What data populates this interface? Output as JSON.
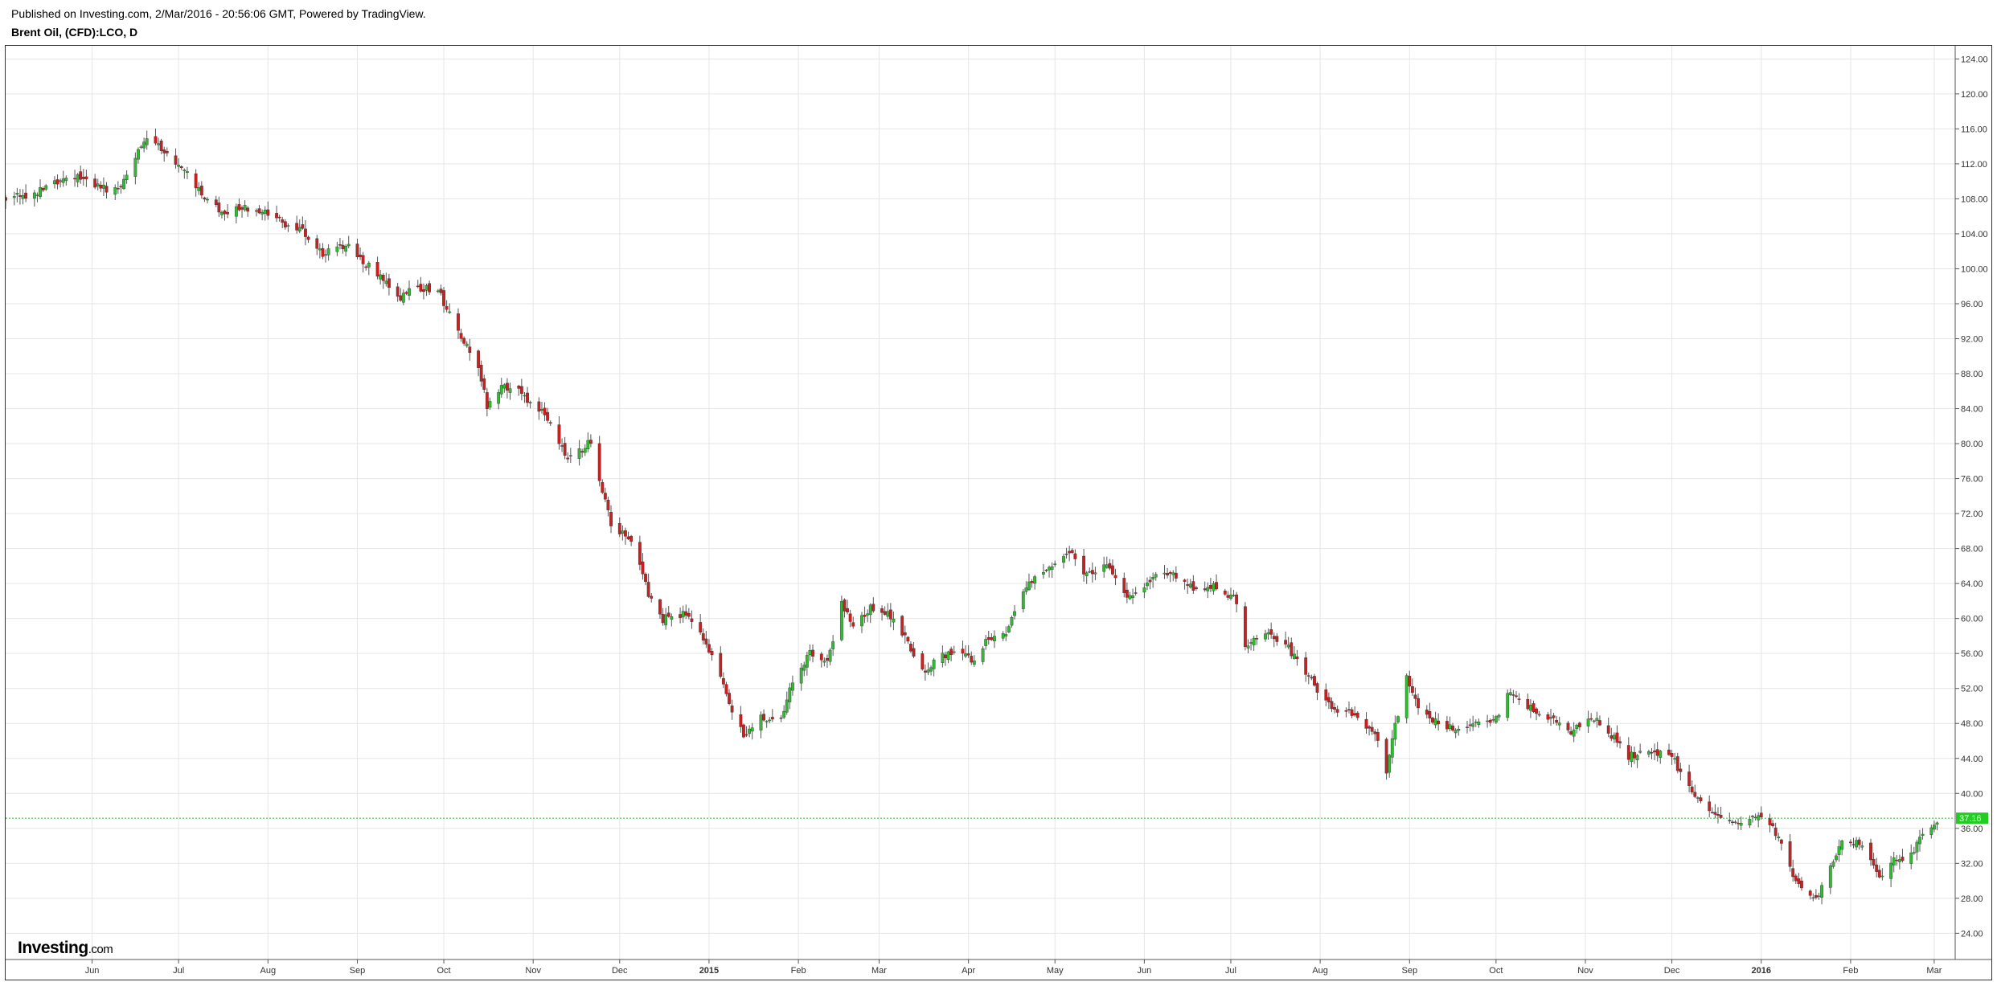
{
  "header": {
    "publish_line": "Published on Investing.com, 2/Mar/2016 - 20:56:06 GMT, Powered by TradingView.",
    "symbol_title": "Brent Oil, (CFD):LCO, D"
  },
  "logo": {
    "name": "Investing",
    "suffix": ".com"
  },
  "colors": {
    "up": "#2ebd2e",
    "down": "#cc1f1f",
    "wick": "#555555",
    "grid": "#e6e6e6",
    "last_price_line": "#2ebd2e",
    "last_price_tag": "#22cc22"
  },
  "chart_data": {
    "type": "candlestick",
    "title": "Brent Oil, (CFD):LCO, D",
    "interval": "D",
    "x_range": [
      "2014-05-02",
      "2016-03-08"
    ],
    "ylim": [
      21.0,
      125.5
    ],
    "y_ticks": [
      "24.00",
      "28.00",
      "32.00",
      "36.00",
      "40.00",
      "44.00",
      "48.00",
      "52.00",
      "56.00",
      "60.00",
      "64.00",
      "68.00",
      "72.00",
      "76.00",
      "80.00",
      "84.00",
      "88.00",
      "92.00",
      "96.00",
      "100.00",
      "104.00",
      "108.00",
      "112.00",
      "116.00",
      "120.00",
      "124.00"
    ],
    "x_ticks": [
      {
        "date": "2014-06-01",
        "label": "Jun"
      },
      {
        "date": "2014-07-01",
        "label": "Jul"
      },
      {
        "date": "2014-08-01",
        "label": "Aug"
      },
      {
        "date": "2014-09-01",
        "label": "Sep"
      },
      {
        "date": "2014-10-01",
        "label": "Oct"
      },
      {
        "date": "2014-11-01",
        "label": "Nov"
      },
      {
        "date": "2014-12-01",
        "label": "Dec"
      },
      {
        "date": "2015-01-01",
        "label": "2015"
      },
      {
        "date": "2015-02-01",
        "label": "Feb"
      },
      {
        "date": "2015-03-01",
        "label": "Mar"
      },
      {
        "date": "2015-04-01",
        "label": "Apr"
      },
      {
        "date": "2015-05-01",
        "label": "May"
      },
      {
        "date": "2015-06-01",
        "label": "Jun"
      },
      {
        "date": "2015-07-01",
        "label": "Jul"
      },
      {
        "date": "2015-08-01",
        "label": "Aug"
      },
      {
        "date": "2015-09-01",
        "label": "Sep"
      },
      {
        "date": "2015-10-01",
        "label": "Oct"
      },
      {
        "date": "2015-11-01",
        "label": "Nov"
      },
      {
        "date": "2015-12-01",
        "label": "Dec"
      },
      {
        "date": "2016-01-01",
        "label": "2016"
      },
      {
        "date": "2016-02-01",
        "label": "Feb"
      },
      {
        "date": "2016-03-01",
        "label": "Mar"
      }
    ],
    "close_path": [
      [
        "2014-05-02",
        108.2
      ],
      [
        "2014-05-12",
        108.6
      ],
      [
        "2014-05-20",
        109.9
      ],
      [
        "2014-05-27",
        110.4
      ],
      [
        "2014-06-05",
        109.3
      ],
      [
        "2014-06-10",
        108.8
      ],
      [
        "2014-06-17",
        113.8
      ],
      [
        "2014-06-20",
        115.0
      ],
      [
        "2014-06-27",
        113.1
      ],
      [
        "2014-07-03",
        111.1
      ],
      [
        "2014-07-10",
        108.2
      ],
      [
        "2014-07-15",
        106.6
      ],
      [
        "2014-07-17",
        106.4
      ],
      [
        "2014-07-24",
        107.1
      ],
      [
        "2014-07-30",
        106.5
      ],
      [
        "2014-08-06",
        105.2
      ],
      [
        "2014-08-13",
        104.2
      ],
      [
        "2014-08-20",
        101.8
      ],
      [
        "2014-08-29",
        102.8
      ],
      [
        "2014-09-03",
        100.9
      ],
      [
        "2014-09-10",
        98.8
      ],
      [
        "2014-09-15",
        96.5
      ],
      [
        "2014-09-22",
        97.9
      ],
      [
        "2014-09-29",
        97.6
      ],
      [
        "2014-10-06",
        92.5
      ],
      [
        "2014-10-13",
        88.9
      ],
      [
        "2014-10-16",
        84.4
      ],
      [
        "2014-10-20",
        86.2
      ],
      [
        "2014-10-27",
        86.6
      ],
      [
        "2014-10-31",
        84.5
      ],
      [
        "2014-11-06",
        83.0
      ],
      [
        "2014-11-13",
        77.9
      ],
      [
        "2014-11-21",
        80.3
      ],
      [
        "2014-11-28",
        70.6
      ],
      [
        "2014-12-05",
        69.0
      ],
      [
        "2014-12-12",
        61.9
      ],
      [
        "2014-12-16",
        59.9
      ],
      [
        "2014-12-24",
        60.7
      ],
      [
        "2014-12-31",
        57.3
      ],
      [
        "2015-01-07",
        51.2
      ],
      [
        "2015-01-13",
        46.5
      ],
      [
        "2015-01-19",
        48.9
      ],
      [
        "2015-01-26",
        48.2
      ],
      [
        "2015-01-30",
        52.9
      ],
      [
        "2015-02-05",
        56.2
      ],
      [
        "2015-02-11",
        54.8
      ],
      [
        "2015-02-16",
        61.7
      ],
      [
        "2015-02-20",
        59.5
      ],
      [
        "2015-02-26",
        61.2
      ],
      [
        "2015-03-05",
        60.3
      ],
      [
        "2015-03-10",
        58.0
      ],
      [
        "2015-03-16",
        53.9
      ],
      [
        "2015-03-20",
        55.1
      ],
      [
        "2015-03-27",
        56.5
      ],
      [
        "2015-04-03",
        54.9
      ],
      [
        "2015-04-08",
        57.9
      ],
      [
        "2015-04-14",
        58.1
      ],
      [
        "2015-04-20",
        63.5
      ],
      [
        "2015-04-24",
        64.6
      ],
      [
        "2015-04-30",
        66.3
      ],
      [
        "2015-05-06",
        67.7
      ],
      [
        "2015-05-12",
        64.9
      ],
      [
        "2015-05-19",
        65.9
      ],
      [
        "2015-05-27",
        62.4
      ],
      [
        "2015-06-03",
        64.5
      ],
      [
        "2015-06-10",
        65.5
      ],
      [
        "2015-06-17",
        63.5
      ],
      [
        "2015-06-26",
        63.6
      ],
      [
        "2015-07-03",
        62.1
      ],
      [
        "2015-07-06",
        56.9
      ],
      [
        "2015-07-13",
        58.2
      ],
      [
        "2015-07-20",
        57.1
      ],
      [
        "2015-07-28",
        53.3
      ],
      [
        "2015-08-05",
        49.6
      ],
      [
        "2015-08-12",
        49.2
      ],
      [
        "2015-08-20",
        46.6
      ],
      [
        "2015-08-24",
        42.6
      ],
      [
        "2015-08-27",
        47.6
      ],
      [
        "2015-08-31",
        53.7
      ],
      [
        "2015-09-04",
        49.6
      ],
      [
        "2015-09-11",
        48.1
      ],
      [
        "2015-09-17",
        47.4
      ],
      [
        "2015-09-24",
        48.2
      ],
      [
        "2015-10-01",
        48.7
      ],
      [
        "2015-10-06",
        51.9
      ],
      [
        "2015-10-12",
        49.9
      ],
      [
        "2015-10-19",
        48.7
      ],
      [
        "2015-10-27",
        47.2
      ],
      [
        "2015-11-04",
        48.5
      ],
      [
        "2015-11-09",
        47.1
      ],
      [
        "2015-11-16",
        44.3
      ],
      [
        "2015-11-23",
        44.5
      ],
      [
        "2015-11-30",
        44.8
      ],
      [
        "2015-12-07",
        40.7
      ],
      [
        "2015-12-14",
        38.4
      ],
      [
        "2015-12-21",
        36.4
      ],
      [
        "2015-12-30",
        37.6
      ],
      [
        "2016-01-05",
        36.4
      ],
      [
        "2016-01-11",
        31.5
      ],
      [
        "2016-01-15",
        28.9
      ],
      [
        "2016-01-20",
        27.9
      ],
      [
        "2016-01-26",
        32.1
      ],
      [
        "2016-01-29",
        34.7
      ],
      [
        "2016-02-05",
        34.1
      ],
      [
        "2016-02-11",
        30.1
      ],
      [
        "2016-02-16",
        32.2
      ],
      [
        "2016-02-22",
        33.1
      ],
      [
        "2016-02-26",
        35.1
      ],
      [
        "2016-03-02",
        36.8
      ]
    ],
    "last_price": "37.16"
  }
}
